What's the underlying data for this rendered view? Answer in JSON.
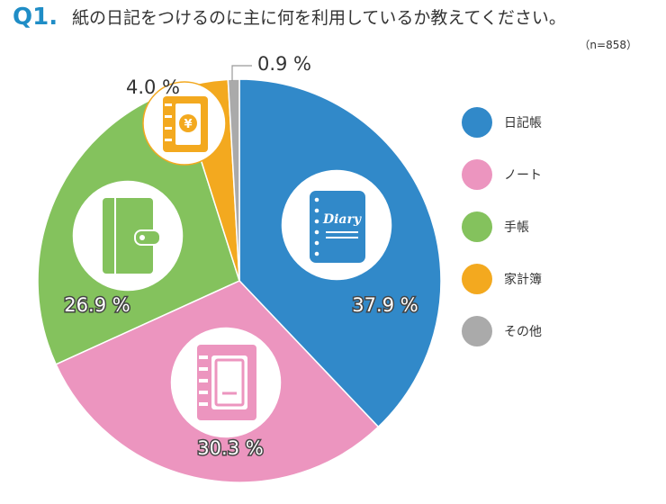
{
  "question": {
    "number": "Q1.",
    "text": "紙の日記をつけるのに主に何を利用しているか教えてください。",
    "sample": "（n=858）"
  },
  "chart_data": {
    "type": "pie",
    "title": "紙の日記をつけるのに主に何を利用しているか教えてください。",
    "n": 858,
    "unit": "%",
    "slices": [
      {
        "label": "日記帳",
        "value": 37.9,
        "display": "37.9 %",
        "color": "#3189c9",
        "icon": "diary-icon"
      },
      {
        "label": "ノート",
        "value": 30.3,
        "display": "30.3 %",
        "color": "#ec95bf",
        "icon": "notebook-icon"
      },
      {
        "label": "手帳",
        "value": 26.9,
        "display": "26.9 %",
        "color": "#84c25d",
        "icon": "planner-icon"
      },
      {
        "label": "家計簿",
        "value": 4.0,
        "display": "4.0 %",
        "color": "#f3a91f",
        "icon": "household-account-book-icon"
      },
      {
        "label": "その他",
        "value": 0.9,
        "display": "0.9 %",
        "color": "#aaaaaa",
        "icon": ""
      }
    ],
    "legend_position": "right"
  },
  "icons": {
    "diary_word": "Diary",
    "yen_symbol": "¥"
  }
}
